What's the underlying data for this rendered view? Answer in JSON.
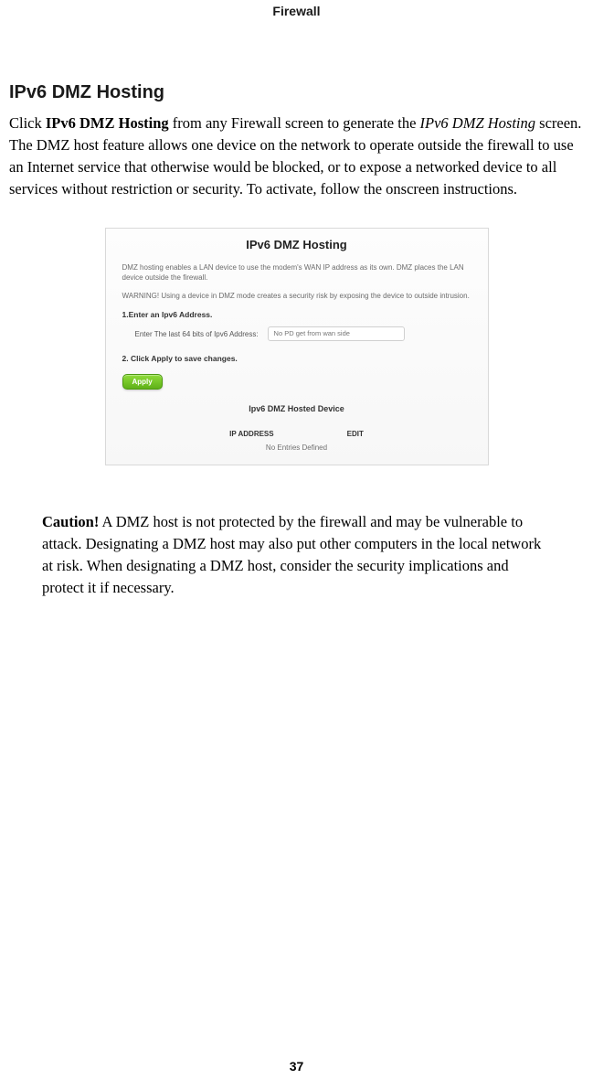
{
  "chapter": "Firewall",
  "heading": "IPv6 DMZ Hosting",
  "para": {
    "prefix": "Click ",
    "bold_link": "IPv6 DMZ Hosting",
    "mid1": " from any Firewall screen to generate the ",
    "italic": "IPv6 DMZ Hosting",
    "rest": " screen. The DMZ host feature allows one device on the network to operate outside the firewall to use an Internet service that otherwise would be blocked, or to expose a networked device to all services without restriction or security. To activate, follow the onscreen instructions."
  },
  "screenshot": {
    "title": "IPv6 DMZ Hosting",
    "desc1": "DMZ hosting enables a LAN device to use the modem's WAN IP address as its own. DMZ places the LAN device outside the firewall.",
    "desc2": "WARNING! Using a device in DMZ mode creates a security risk by exposing the device to outside intrusion.",
    "step1": "1.Enter an Ipv6 Address.",
    "input_label": "Enter The last 64 bits of Ipv6 Address:",
    "input_placeholder": "No PD get from wan side",
    "step2": "2. Click Apply to save changes.",
    "apply": "Apply",
    "subtitle": "Ipv6 DMZ Hosted Device",
    "col_ip": "IP ADDRESS",
    "col_edit": "EDIT",
    "empty": "No Entries Defined"
  },
  "caution": {
    "label": "Caution!",
    "text": " A DMZ host is not protected by the firewall and may be vulnerable to attack. Designating a DMZ host may also put other computers in the local network at risk. When designating a DMZ host, consider the security implications and protect it if necessary."
  },
  "page_number": "37"
}
